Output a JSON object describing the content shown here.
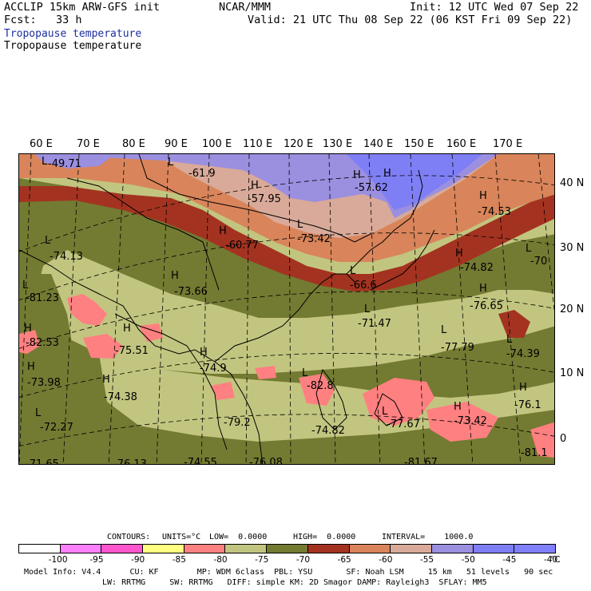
{
  "header": {
    "model_line": "ACCLIP 15km ARW-GFS init",
    "center": "NCAR/MMM",
    "init": "Init: 12 UTC Wed 07 Sep 22",
    "fcst": "Fcst:   33 h",
    "valid": "Valid: 21 UTC Thu 08 Sep 22 (06 KST Fri 09 Sep 22)",
    "field_title_1": "Tropopause temperature",
    "field_title_2": "Tropopause temperature"
  },
  "colors": {
    "field_title_1": "#1c2fa0",
    "bins": [
      "#ffffff",
      "#ff80ff",
      "#ff55cc",
      "#ffff80",
      "#ff8080",
      "#c2c57f",
      "#737a32",
      "#a33320",
      "#d9845a",
      "#d9aa99",
      "#9b8fe0",
      "#7f7ff5",
      "#8080ff"
    ]
  },
  "longitude_labels": [
    "60 E",
    "70 E",
    "80 E",
    "90 E",
    "100 E",
    "110 E",
    "120 E",
    "130 E",
    "140 E",
    "150 E",
    "160 E",
    "170 E"
  ],
  "latitude_labels": [
    "40 N",
    "30 N",
    "20 N",
    "10 N",
    "0"
  ],
  "map_labels": {
    "highs_lows": [
      "L",
      "L",
      "H",
      "H",
      "H",
      "H",
      "L",
      "H",
      "L",
      "H",
      "L",
      "H",
      "L",
      "L",
      "L",
      "H",
      "H",
      "H",
      "H",
      "L",
      "L",
      "H",
      "H",
      "L",
      "H",
      "L",
      "L",
      "H"
    ],
    "values": [
      "-49.71",
      "-61.9",
      "-57.95",
      "-57.62",
      "-74.53",
      "-74.13",
      "-60.77",
      "-73.42",
      "-74.82",
      "-70",
      "-73.66",
      "-66.6",
      "-81.23",
      "-71.47",
      "-76.65",
      "-82.53",
      "-75.51",
      "-74.9",
      "-77.79",
      "-74.39",
      "-73.98",
      "-74.38",
      "-82.8",
      "-76.1",
      "-72.27",
      "-79.2",
      "-74.82",
      "-77.67",
      "-73.42",
      "-71.65",
      "-76.13",
      "-74.55",
      "-76.08",
      "-81.67",
      "-81.1"
    ]
  },
  "contour_info": {
    "contours": "CONTOURS:",
    "units": "UNITS=°C",
    "low": "LOW=  0.0000",
    "high": "HIGH=  0.0000",
    "interval": "INTERVAL=    1000.0"
  },
  "colorbar": {
    "ticks": [
      "-100",
      "-95",
      "-90",
      "-85",
      "-80",
      "-75",
      "-70",
      "-65",
      "-60",
      "-55",
      "-50",
      "-45",
      "-40"
    ],
    "unit": "°C"
  },
  "footer": {
    "line1": "Model Info: V4.4      CU: KF        MP: WDM 6class  PBL: YSU       SF: Noah LSM     15 km   51 levels   90 sec",
    "line2": "LW: RRTMG     SW: RRTMG   DIFF: simple KM: 2D Smagor DAMP: Rayleigh3  SFLAY: MM5"
  }
}
